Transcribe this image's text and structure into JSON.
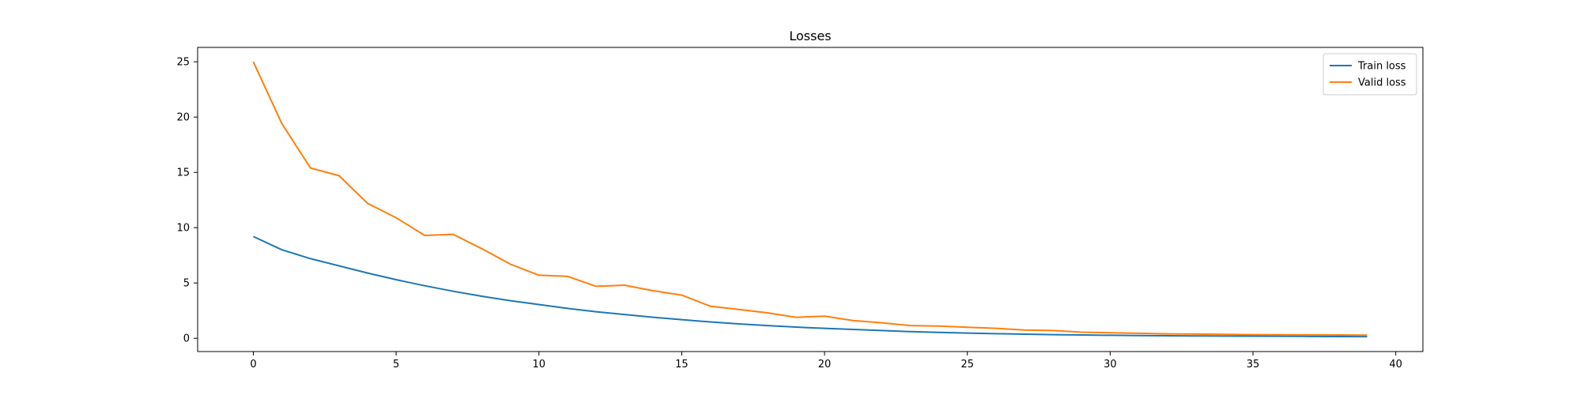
{
  "chart_data": {
    "type": "line",
    "title": "Losses",
    "xlabel": "",
    "ylabel": "",
    "xlim": [
      -1.95,
      40.95
    ],
    "ylim": [
      -1.2,
      26.3
    ],
    "x_ticks": [
      0,
      5,
      10,
      15,
      20,
      25,
      30,
      35,
      40
    ],
    "y_ticks": [
      0,
      5,
      10,
      15,
      20,
      25
    ],
    "grid": false,
    "legend_position": "top-right",
    "x": [
      0,
      1,
      2,
      3,
      4,
      5,
      6,
      7,
      8,
      9,
      10,
      11,
      12,
      13,
      14,
      15,
      16,
      17,
      18,
      19,
      20,
      21,
      22,
      23,
      24,
      25,
      26,
      27,
      28,
      29,
      30,
      31,
      32,
      33,
      34,
      35,
      36,
      37,
      38,
      39
    ],
    "series": [
      {
        "name": "Train loss",
        "color": "#1f77b4",
        "values": [
          9.2,
          8.0,
          7.2,
          6.55,
          5.9,
          5.3,
          4.75,
          4.25,
          3.8,
          3.4,
          3.05,
          2.7,
          2.4,
          2.15,
          1.9,
          1.68,
          1.48,
          1.3,
          1.15,
          1.01,
          0.9,
          0.8,
          0.7,
          0.6,
          0.53,
          0.47,
          0.42,
          0.37,
          0.33,
          0.3,
          0.27,
          0.25,
          0.23,
          0.21,
          0.2,
          0.19,
          0.18,
          0.17,
          0.16,
          0.15
        ]
      },
      {
        "name": "Valid loss",
        "color": "#ff7f0e",
        "values": [
          25.0,
          19.4,
          15.4,
          14.7,
          12.2,
          10.9,
          9.3,
          9.4,
          8.1,
          6.7,
          5.7,
          5.6,
          4.7,
          4.8,
          4.3,
          3.9,
          2.9,
          2.6,
          2.3,
          1.9,
          2.0,
          1.6,
          1.4,
          1.15,
          1.1,
          1.0,
          0.9,
          0.75,
          0.7,
          0.55,
          0.5,
          0.45,
          0.4,
          0.38,
          0.35,
          0.33,
          0.32,
          0.31,
          0.3,
          0.28
        ]
      }
    ]
  }
}
